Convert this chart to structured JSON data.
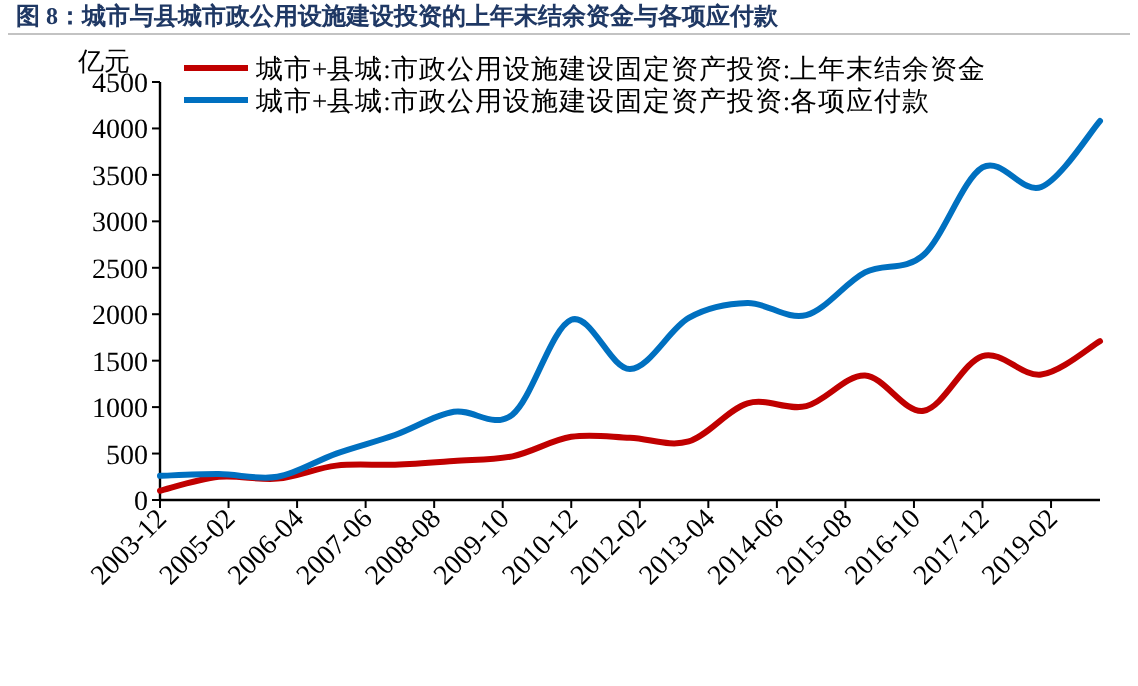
{
  "chart_data": {
    "type": "line",
    "title": "图 8：城市与县城市政公用设施建设投资的上年末结余资金与各项应付款",
    "ylabel": "亿元",
    "x": [
      "2003-12",
      "2004-12",
      "2005-12",
      "2006-12",
      "2007-12",
      "2008-12",
      "2009-12",
      "2010-12",
      "2011-12",
      "2012-12",
      "2013-12",
      "2014-12",
      "2015-12",
      "2016-12",
      "2017-12",
      "2018-12",
      "2019-12"
    ],
    "series": [
      {
        "name": "城市+县城:市政公用设施建设固定资产投资:上年末结余资金",
        "color": "#c00000",
        "values": [
          100,
          250,
          230,
          370,
          380,
          420,
          470,
          680,
          670,
          630,
          1040,
          1010,
          1340,
          960,
          1550,
          1350,
          1710
        ]
      },
      {
        "name": "城市+县城:市政公用设施建设固定资产投资:各项应付款",
        "color": "#0070c0",
        "values": [
          260,
          280,
          250,
          500,
          700,
          950,
          920,
          1940,
          1410,
          1960,
          2120,
          1990,
          2450,
          2640,
          3580,
          3370,
          4080
        ]
      }
    ],
    "xlim": [
      "2003-12",
      "2019-12"
    ],
    "xticks": [
      "2003-12",
      "2005-02",
      "2006-04",
      "2007-06",
      "2008-08",
      "2009-10",
      "2010-12",
      "2012-02",
      "2013-04",
      "2014-06",
      "2015-08",
      "2016-10",
      "2017-12",
      "2019-02"
    ],
    "ylim": [
      0,
      4500
    ],
    "yticks": [
      0,
      500,
      1000,
      1500,
      2000,
      2500,
      3000,
      3500,
      4000,
      4500
    ],
    "grid": false,
    "legend": "top left",
    "marker": "none",
    "line_style": "solid"
  }
}
